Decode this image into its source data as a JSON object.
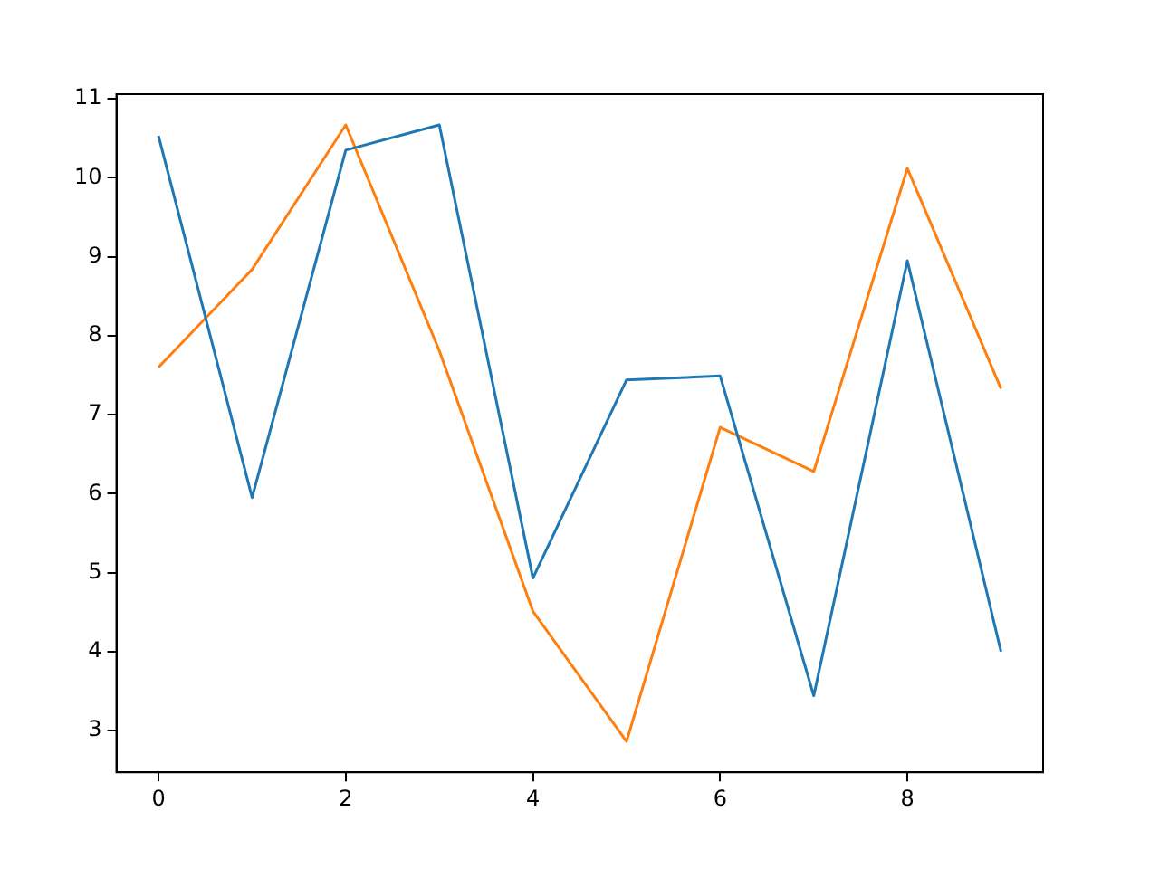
{
  "chart_data": {
    "type": "line",
    "x": [
      0,
      1,
      2,
      3,
      4,
      5,
      6,
      7,
      8,
      9
    ],
    "series": [
      {
        "color": "#1f77b4",
        "values": [
          10.53,
          5.95,
          10.35,
          10.67,
          4.93,
          7.44,
          7.49,
          3.44,
          8.95,
          4.0
        ]
      },
      {
        "color": "#ff7f0e",
        "values": [
          7.6,
          8.84,
          10.67,
          7.81,
          4.51,
          2.86,
          6.84,
          6.28,
          10.12,
          7.33
        ]
      }
    ],
    "xlim": [
      -0.45,
      9.45
    ],
    "xticks": [
      0,
      2,
      4,
      6,
      8
    ],
    "ylim": [
      2.47,
      11.06
    ],
    "yticks": [
      3,
      4,
      5,
      6,
      7,
      8,
      9,
      10,
      11
    ],
    "grid": false,
    "legend": false,
    "marker": "none",
    "line_style": "solid"
  }
}
